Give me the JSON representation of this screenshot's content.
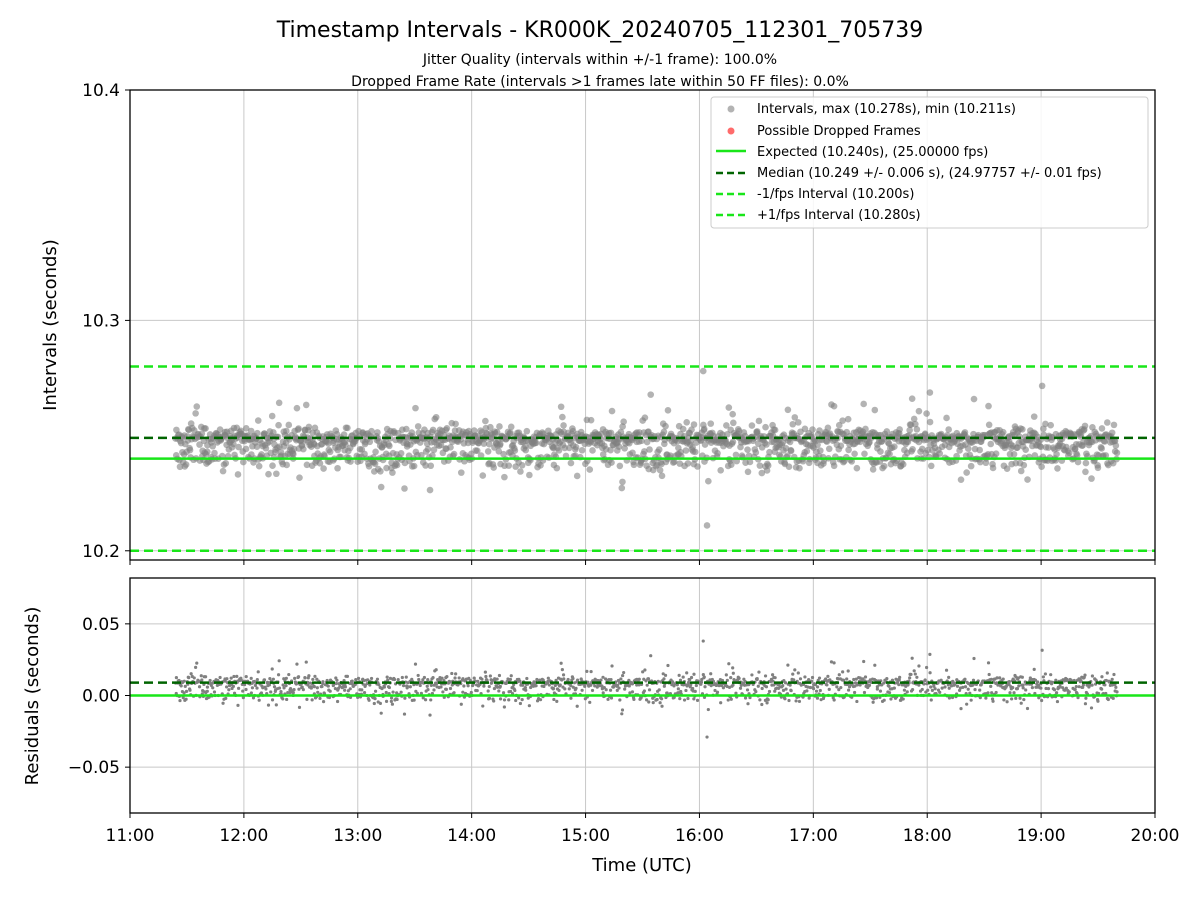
{
  "title": "Timestamp Intervals - KR000K_20240705_112301_705739",
  "subtitle_lines": [
    "Jitter Quality (intervals within +/-1 frame): 100.0%",
    "Dropped Frame Rate (intervals >1 frames late within 50 FF files): 0.0%"
  ],
  "colors": {
    "points": "#808080",
    "dropped": "#ff6b6b",
    "expected": "#19e619",
    "median": "#006400",
    "bounds": "#19e619",
    "grid": "#c8c8c8"
  },
  "chart_data": [
    {
      "type": "scatter",
      "name": "intervals",
      "ylabel": "Intervals (seconds)",
      "xlabel": "",
      "xlim": [
        "11:00",
        "20:00"
      ],
      "ylim": [
        10.196,
        10.4
      ],
      "x_ticks": [
        "11:00",
        "12:00",
        "13:00",
        "14:00",
        "15:00",
        "16:00",
        "17:00",
        "18:00",
        "19:00",
        "20:00"
      ],
      "y_ticks": [
        10.2,
        10.3,
        10.4
      ],
      "y_tick_labels": [
        "10.2",
        "10.3",
        "10.4"
      ],
      "grid": true,
      "legend_position": "top-right",
      "x_range": [
        "11:24",
        "19:40"
      ],
      "max_interval": 10.278,
      "min_interval": 10.211,
      "expected": 10.24,
      "median": 10.249,
      "lower_bound": 10.2,
      "upper_bound": 10.28,
      "legend": [
        "Intervals, max (10.278s), min (10.211s)",
        "Possible Dropped Frames",
        "Expected (10.240s), (25.00000 fps)",
        "Median (10.249 +/- 0.006 s), (24.97757 +/- 0.01 fps)",
        "-1/fps Interval (10.200s)",
        "+1/fps Interval (10.280s)"
      ]
    },
    {
      "type": "scatter",
      "name": "residuals",
      "ylabel": "Residuals (seconds)",
      "xlabel": "Time (UTC)",
      "xlim": [
        "11:00",
        "20:00"
      ],
      "ylim": [
        -0.082,
        0.082
      ],
      "x_ticks": [
        "11:00",
        "12:00",
        "13:00",
        "14:00",
        "15:00",
        "16:00",
        "17:00",
        "18:00",
        "19:00",
        "20:00"
      ],
      "x_tick_labels": [
        "11:00",
        "12:00",
        "13:00",
        "14:00",
        "15:00",
        "16:00",
        "17:00",
        "18:00",
        "19:00",
        "20:00"
      ],
      "y_ticks": [
        -0.05,
        0.0,
        0.05
      ],
      "y_tick_labels": [
        "−0.05",
        "0.00",
        "0.05"
      ],
      "grid": true,
      "zero_line": 0.0,
      "median_line": 0.009,
      "max_residual": 0.038,
      "min_residual": -0.029
    }
  ]
}
